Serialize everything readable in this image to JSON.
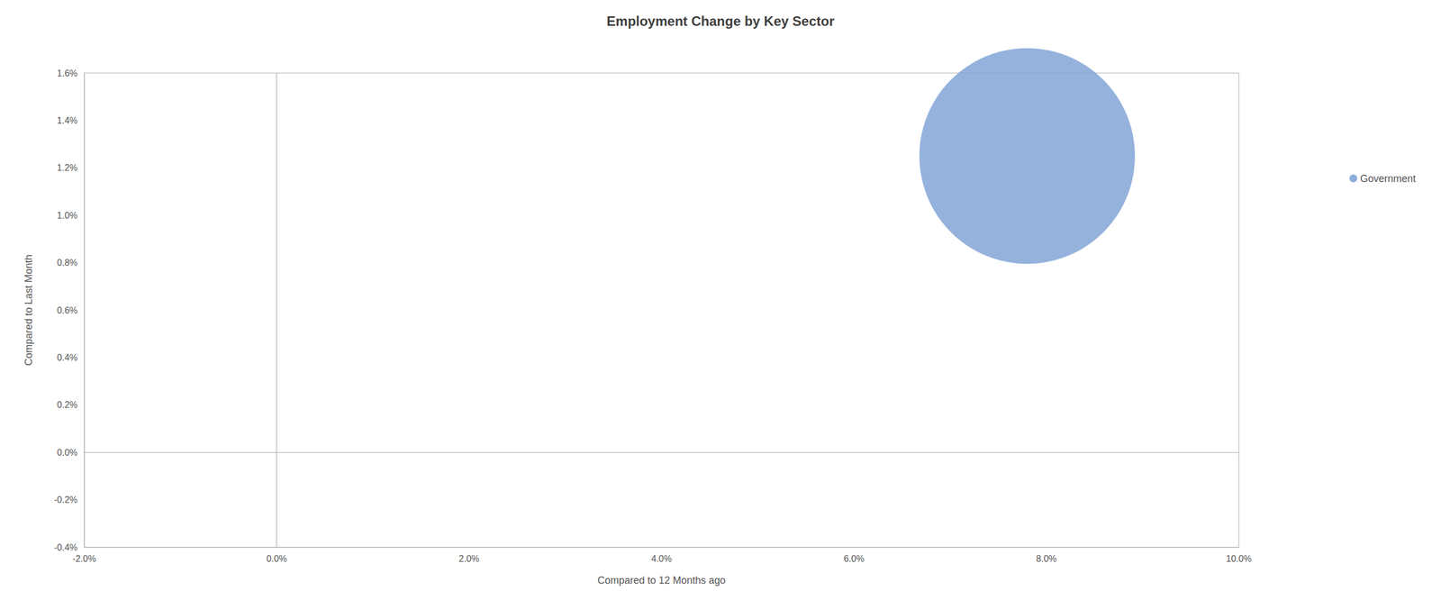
{
  "chart_data": {
    "type": "scatter",
    "title": "Employment Change by Key Sector",
    "xlabel": "Compared to 12 Months ago",
    "ylabel": "Compared to Last Month",
    "series": [
      {
        "name": "Government",
        "color": "#7b9fd4",
        "x": [
          0.078
        ],
        "y": [
          0.0125
        ],
        "sizes": [
          60000
        ]
      }
    ],
    "xlim": [
      -0.02,
      0.1
    ],
    "ylim": [
      -0.004,
      0.016
    ],
    "xticks": [
      {
        "value": -0.02,
        "label": "-2.0%"
      },
      {
        "value": 0.0,
        "label": "0.0%"
      },
      {
        "value": 0.02,
        "label": "2.0%"
      },
      {
        "value": 0.04,
        "label": "4.0%"
      },
      {
        "value": 0.06,
        "label": "6.0%"
      },
      {
        "value": 0.08,
        "label": "8.0%"
      },
      {
        "value": 0.1,
        "label": "10.0%"
      }
    ],
    "yticks": [
      {
        "value": -0.004,
        "label": "-0.4%"
      },
      {
        "value": -0.002,
        "label": "-0.2%"
      },
      {
        "value": 0.0,
        "label": "0.0%"
      },
      {
        "value": 0.002,
        "label": "0.2%"
      },
      {
        "value": 0.004,
        "label": "0.4%"
      },
      {
        "value": 0.006,
        "label": "0.6%"
      },
      {
        "value": 0.008,
        "label": "0.8%"
      },
      {
        "value": 0.01,
        "label": "1.0%"
      },
      {
        "value": 0.012,
        "label": "1.2%"
      },
      {
        "value": 0.014,
        "label": "1.4%"
      },
      {
        "value": 0.016,
        "label": "1.6%"
      }
    ],
    "vline_x": 0.0,
    "hline_y": 0.0,
    "grid": false,
    "legend": "right"
  }
}
